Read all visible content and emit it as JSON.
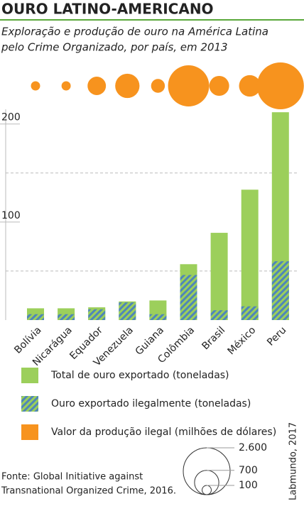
{
  "chart_data": {
    "type": "bar",
    "title": "OURO LATINO-AMERICANO",
    "subtitle": [
      "Exploração e produção de ouro na América Latina",
      "pelo Crime Organizado, por país, em 2013"
    ],
    "categories": [
      "Bolívia",
      "Nicarágua",
      "Equador",
      "Venezuela",
      "Guiana",
      "Colômbia",
      "Brasil",
      "México",
      "Peru"
    ],
    "series": [
      {
        "name": "Total de ouro exportado (toneladas)",
        "color": "#9ccf5b",
        "values": [
          12,
          12,
          13,
          19,
          20,
          57,
          89,
          133,
          212
        ]
      },
      {
        "name": "Ouro exportado ilegalmente (toneladas)",
        "color": "#4f86b8",
        "pattern": "hatch",
        "values": [
          6,
          6,
          11,
          18,
          6,
          46,
          10,
          14,
          60
        ]
      },
      {
        "name": "Valor da produção ilegal (milhões de dólares)",
        "color": "#f7931e",
        "axis": "size",
        "values": [
          100,
          100,
          400,
          700,
          225,
          2000,
          470,
          550,
          2600
        ]
      }
    ],
    "ylim": [
      0,
      215
    ],
    "yticks": [
      100,
      200
    ],
    "minor_grid": [
      50,
      150
    ],
    "size_ticks": [
      {
        "value": 2600,
        "label": "2.600"
      },
      700,
      100
    ],
    "source": [
      "Fonte: Global Initiative against",
      "Transnational Organized Crime, 2016."
    ],
    "credit": "Labmundo, 2017"
  }
}
